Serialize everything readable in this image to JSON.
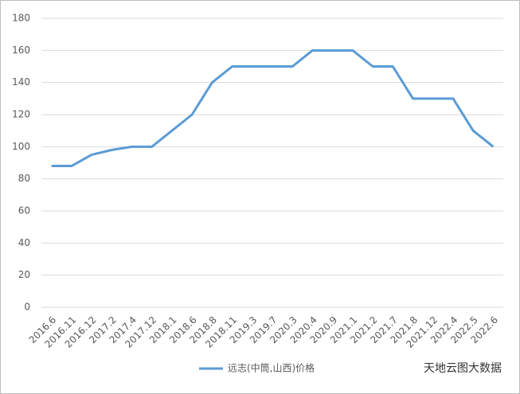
{
  "chart_data": {
    "type": "line",
    "categories": [
      "2016.6",
      "2016.11",
      "2016.12",
      "2017.2",
      "2017.4",
      "2017.12",
      "2018.1",
      "2018.6",
      "2018.8",
      "2018.11",
      "2019.3",
      "2019.7",
      "2020.3",
      "2020.4",
      "2020.9",
      "2021.1",
      "2021.2",
      "2021.7",
      "2021.8",
      "2021.12",
      "2022.4",
      "2022.5",
      "2022.6"
    ],
    "series": [
      {
        "name": "远志(中筒,山西)价格",
        "color": "#5b9bd5",
        "values": [
          88,
          88,
          95,
          98,
          100,
          100,
          110,
          120,
          140,
          150,
          150,
          150,
          150,
          160,
          160,
          160,
          150,
          150,
          130,
          130,
          130,
          110,
          100
        ]
      }
    ],
    "ylim": [
      0,
      180
    ],
    "yticks": [
      0,
      20,
      40,
      60,
      80,
      100,
      120,
      140,
      160,
      180
    ],
    "grid": true,
    "legend": "bottom",
    "watermark": "天地云图大数据"
  }
}
